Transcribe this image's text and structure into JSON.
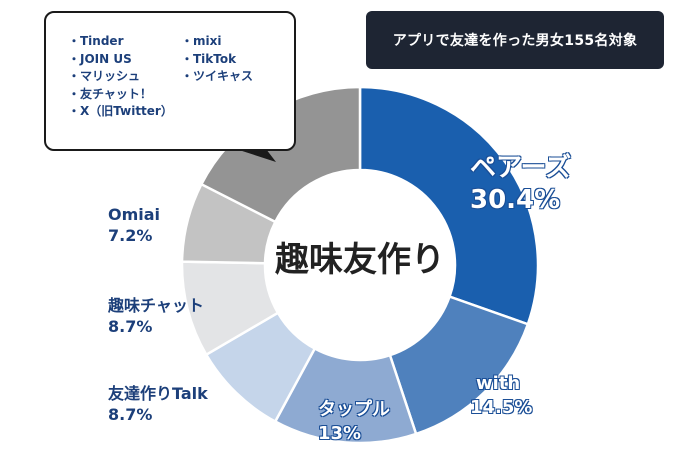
{
  "header_badge": "アプリで友達を作った男女155名対象",
  "center_title": "趣味友作り",
  "others_box": {
    "col1": [
      "・Tinder",
      "・JOIN US",
      "・マリッシュ",
      "・友チャット！",
      "・X（旧Twitter）"
    ],
    "col2": [
      "・mixi",
      "・TikTok",
      "・ツイキャス"
    ]
  },
  "chart_data": {
    "type": "pie",
    "variant": "donut",
    "title": "趣味友作り",
    "subtitle": "アプリで友達を作った男女155名対象",
    "slices": [
      {
        "label": "ペアーズ",
        "value": 30.4,
        "value_label": "30.4%",
        "color": "#1a5fae"
      },
      {
        "label": "with",
        "value": 14.5,
        "value_label": "14.5%",
        "color": "#4f81bd"
      },
      {
        "label": "タップル",
        "value": 13,
        "value_label": "13%",
        "color": "#8eaad2"
      },
      {
        "label": "友達作りTalk",
        "value": 8.7,
        "value_label": "8.7%",
        "color": "#c5d5ea"
      },
      {
        "label": "趣味チャット",
        "value": 8.7,
        "value_label": "8.7%",
        "color": "#e3e4e6"
      },
      {
        "label": "Omiai",
        "value": 7.2,
        "value_label": "7.2%",
        "color": "#c3c3c3"
      },
      {
        "label": "",
        "value": 17.5,
        "value_label": "",
        "color": "#949494"
      }
    ]
  }
}
